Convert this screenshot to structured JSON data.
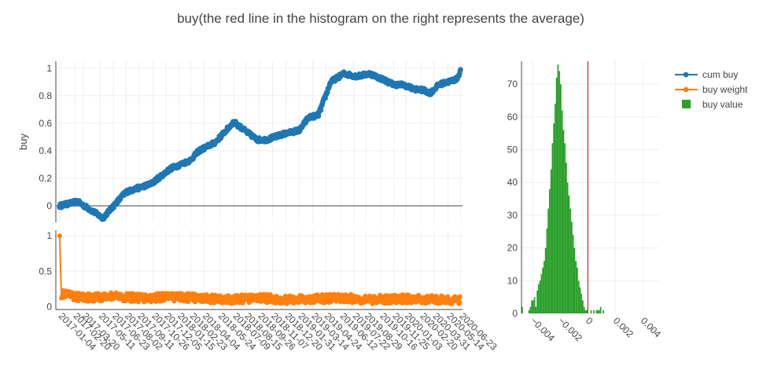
{
  "chart_data": {
    "title": "buy(the red line in the histogram on the right represents the average)",
    "colors": {
      "cum": "#1f77b4",
      "weight": "#ff7f0e",
      "hist": "#2ca02c",
      "mean": "#d62728",
      "grid": "#eeeeee",
      "zero": "#444444"
    },
    "legend": {
      "position": "top-right",
      "entries": [
        {
          "name": "cum buy",
          "color": "#1f77b4",
          "kind": "line-marker"
        },
        {
          "name": "buy weight",
          "color": "#ff7f0e",
          "kind": "line-marker"
        },
        {
          "name": "buy value",
          "color": "#2ca02c",
          "kind": "box"
        }
      ]
    },
    "panels": [
      {
        "id": "cum-buy",
        "type": "scatter",
        "ylabel": "buy",
        "ylim": [
          -0.12,
          1.05
        ],
        "yticks": [
          0,
          0.2,
          0.4,
          0.6,
          0.8,
          1
        ],
        "ytick_labels": [
          "0",
          "0.2",
          "0.4",
          "0.6",
          "0.8",
          "1"
        ],
        "grid": true,
        "zero_line": true,
        "series": {
          "name": "cum buy",
          "x": [
            "2017-01-04",
            "2017-03-01",
            "2017-04-26",
            "2017-05-20",
            "2017-08-01",
            "2017-10-20",
            "2017-12-20",
            "2018-02-20",
            "2018-03-20",
            "2018-05-10",
            "2018-07-08",
            "2018-08-15",
            "2018-09-20",
            "2018-10-20",
            "2018-12-10",
            "2019-02-01",
            "2019-02-28",
            "2019-04-01",
            "2019-05-10",
            "2019-06-20",
            "2019-08-01",
            "2019-09-10",
            "2019-10-20",
            "2019-11-25",
            "2019-12-25",
            "2020-01-25",
            "2020-02-25",
            "2020-03-20",
            "2020-04-15",
            "2020-05-14",
            "2020-06-10",
            "2020-06-23"
          ],
          "y": [
            0.0,
            0.03,
            -0.05,
            -0.09,
            0.1,
            0.16,
            0.27,
            0.33,
            0.4,
            0.46,
            0.61,
            0.54,
            0.48,
            0.48,
            0.52,
            0.55,
            0.64,
            0.66,
            0.9,
            0.96,
            0.94,
            0.96,
            0.92,
            0.88,
            0.88,
            0.85,
            0.84,
            0.82,
            0.88,
            0.9,
            0.92,
            0.98
          ]
        }
      },
      {
        "id": "buy-weight",
        "type": "scatter",
        "ylim": [
          -0.04,
          1.08
        ],
        "yticks": [
          0,
          0.5,
          1
        ],
        "ytick_labels": [
          "0",
          "0.5",
          "1"
        ],
        "grid": true,
        "series": {
          "name": "buy weight",
          "x": [
            "2017-01-04",
            "2017-01-10",
            "2017-02-20",
            "2017-04-20",
            "2017-06-20",
            "2017-09-20",
            "2017-12-20",
            "2018-03-20",
            "2018-06-20",
            "2018-09-20",
            "2018-12-20",
            "2019-03-20",
            "2019-06-20",
            "2019-09-20",
            "2019-12-20",
            "2020-03-20",
            "2020-06-23"
          ],
          "y": [
            1.0,
            0.18,
            0.14,
            0.13,
            0.15,
            0.12,
            0.14,
            0.12,
            0.1,
            0.12,
            0.1,
            0.11,
            0.12,
            0.1,
            0.11,
            0.1,
            0.09
          ]
        },
        "xtick_labels": [
          "2017-01-04",
          "2017-02-20",
          "2017-03-20",
          "2017-05-11",
          "2017-06-23",
          "2017-08-02",
          "2017-09-11",
          "2017-10-26",
          "2017-12-05",
          "2018-01-15",
          "2018-02-23",
          "2018-04-04",
          "2018-05-24",
          "2018-07-09",
          "2018-08-15",
          "2018-09-26",
          "2018-11-07",
          "2018-12-20",
          "2019-01-31",
          "2019-03-14",
          "2019-04-24",
          "2019-06-12",
          "2019-07-22",
          "2019-08-29",
          "2019-10-16",
          "2019-11-25",
          "2020-01-03",
          "2020-02-20",
          "2020-03-31",
          "2020-05-14",
          "2020-06-23"
        ]
      },
      {
        "id": "histogram",
        "type": "bar",
        "xlim": [
          -0.0048,
          0.0052
        ],
        "xticks": [
          -0.004,
          -0.002,
          0,
          0.002,
          0.004
        ],
        "xtick_labels": [
          "−0.004",
          "−0.002",
          "0",
          "0.002",
          "0.004"
        ],
        "ylim": [
          0,
          77
        ],
        "yticks": [
          0,
          10,
          20,
          30,
          40,
          50,
          60,
          70
        ],
        "ytick_labels": [
          "0",
          "10",
          "20",
          "30",
          "40",
          "50",
          "60",
          "70"
        ],
        "grid": true,
        "bin_width": 0.0001,
        "bins_start": -0.0048,
        "counts": [
          2,
          0,
          0,
          0,
          0,
          1,
          2,
          4,
          4,
          5,
          2,
          7,
          9,
          10,
          12,
          14,
          16,
          20,
          26,
          32,
          38,
          44,
          52,
          58,
          64,
          72,
          76,
          74,
          70,
          62,
          56,
          52,
          46,
          40,
          36,
          32,
          28,
          24,
          20,
          16,
          14,
          10,
          8,
          6,
          4,
          2,
          1,
          1,
          0,
          0,
          1,
          0,
          1,
          0,
          1,
          1,
          1,
          2,
          0,
          1
        ],
        "series_name": "buy value",
        "mean": 2e-05
      }
    ]
  }
}
